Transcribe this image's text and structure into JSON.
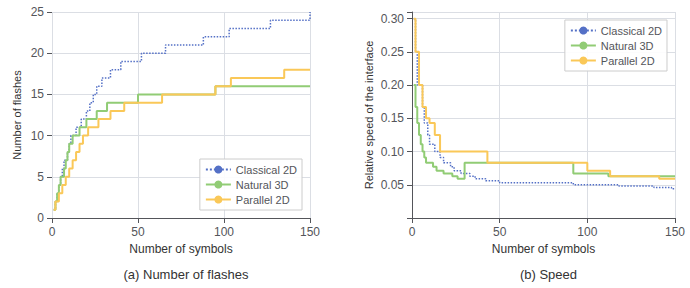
{
  "chart_data": [
    {
      "type": "step",
      "title": "(a) Number of flashes",
      "xlabel": "Number of symbols",
      "ylabel": "Number of flashes",
      "xlim": [
        0,
        150
      ],
      "ylim": [
        0,
        25
      ],
      "xticks": [
        0,
        50,
        100,
        150
      ],
      "yticks": [
        0,
        5,
        10,
        15,
        20,
        25
      ],
      "grid": true,
      "legend": "lower right",
      "series": [
        {
          "name": "Classical 2D",
          "line_style": "dotted",
          "x": [
            1,
            2,
            3,
            4,
            5,
            6,
            7,
            8,
            9,
            10,
            11,
            12,
            13,
            14,
            15,
            16,
            17,
            18,
            19,
            20,
            21,
            22,
            23,
            24,
            25,
            26,
            27,
            28,
            29,
            30,
            32,
            34,
            36,
            38,
            40,
            43,
            46,
            49,
            52,
            55,
            58,
            62,
            66,
            70,
            74,
            78,
            83,
            88,
            93,
            98,
            103,
            109,
            115,
            121,
            127,
            133,
            139,
            145,
            150
          ],
          "values": [
            1,
            2,
            3,
            4,
            5,
            6,
            7,
            7,
            8,
            9,
            10,
            10,
            10,
            11,
            11,
            11,
            12,
            12,
            12,
            13,
            13,
            14,
            14,
            15,
            15,
            16,
            16,
            16,
            17,
            17,
            17,
            18,
            18,
            18,
            19,
            19,
            19,
            19,
            20,
            20,
            20,
            20,
            21,
            21,
            21,
            21,
            21,
            22,
            22,
            22,
            23,
            23,
            23,
            23,
            24,
            24,
            24,
            24,
            25
          ]
        },
        {
          "name": "Natural 3D",
          "line_style": "solid",
          "x": [
            1,
            2,
            3,
            4,
            5,
            6,
            7,
            8,
            9,
            10,
            12,
            14,
            16,
            18,
            20,
            23,
            26,
            29,
            32,
            35,
            38,
            42,
            46,
            50,
            55,
            60,
            65,
            70,
            76,
            82,
            88,
            95,
            102,
            110,
            118,
            126,
            135,
            143,
            150
          ],
          "values": [
            1,
            2,
            3,
            4,
            5,
            5,
            6,
            7,
            8,
            9,
            10,
            10,
            11,
            11,
            12,
            12,
            13,
            13,
            14,
            14,
            14,
            14,
            14,
            15,
            15,
            15,
            15,
            15,
            15,
            15,
            15,
            16,
            16,
            16,
            16,
            16,
            16,
            16,
            16
          ]
        },
        {
          "name": "Parallel 2D",
          "line_style": "solid",
          "x": [
            1,
            2,
            4,
            6,
            8,
            10,
            12,
            14,
            16,
            18,
            21,
            24,
            27,
            30,
            34,
            38,
            42,
            47,
            52,
            58,
            64,
            71,
            78,
            86,
            95,
            104,
            114,
            124,
            135,
            145,
            150
          ],
          "values": [
            1,
            2,
            3,
            4,
            5,
            6,
            7,
            8,
            9,
            10,
            11,
            11,
            12,
            12,
            13,
            13,
            14,
            14,
            14,
            14,
            15,
            15,
            15,
            15,
            16,
            17,
            17,
            17,
            18,
            18,
            18
          ]
        }
      ]
    },
    {
      "type": "step",
      "title": "(b) Speed",
      "xlabel": "Number of symbols",
      "ylabel": "Relative speed of the interface",
      "xlim": [
        0,
        150
      ],
      "ylim": [
        0,
        0.31
      ],
      "xticks": [
        0,
        50,
        100,
        150
      ],
      "yticks": [
        0.05,
        {
          "value": 0.1,
          "label": "0.10"
        },
        0.15,
        {
          "value": 0.2,
          "label": "0.20"
        },
        0.25,
        {
          "value": 0.3,
          "label": "0.30"
        }
      ],
      "grid": true,
      "legend": "upper right",
      "series": [
        {
          "name": "Classical 2D",
          "line_style": "dotted",
          "x": [
            1,
            2,
            3,
            4,
            5,
            6,
            7,
            8,
            9,
            10,
            11,
            12,
            13,
            14,
            15,
            16,
            17,
            18,
            19,
            20,
            22,
            24,
            26,
            28,
            30,
            33,
            36,
            39,
            42,
            46,
            50,
            55,
            60,
            65,
            71,
            77,
            84,
            92,
            100,
            109,
            118,
            128,
            138,
            148,
            150
          ],
          "values": [
            0.3,
            0.25,
            0.2,
            0.2,
            0.2,
            0.167,
            0.143,
            0.143,
            0.125,
            0.111,
            0.111,
            0.111,
            0.1,
            0.1,
            0.1,
            0.091,
            0.091,
            0.083,
            0.083,
            0.083,
            0.077,
            0.071,
            0.071,
            0.067,
            0.067,
            0.063,
            0.059,
            0.059,
            0.056,
            0.056,
            0.053,
            0.053,
            0.053,
            0.053,
            0.053,
            0.053,
            0.053,
            0.05,
            0.05,
            0.05,
            0.048,
            0.048,
            0.046,
            0.044,
            0.044
          ]
        },
        {
          "name": "Natural 3D",
          "line_style": "solid",
          "x": [
            1,
            2,
            3,
            4,
            5,
            6,
            7,
            8,
            9,
            10,
            12,
            14,
            16,
            18,
            20,
            23,
            26,
            30,
            34,
            38,
            43,
            48,
            54,
            60,
            67,
            75,
            83,
            92,
            102,
            112,
            123,
            135,
            147,
            150
          ],
          "values": [
            0.2,
            0.167,
            0.143,
            0.125,
            0.111,
            0.1,
            0.091,
            0.083,
            0.083,
            0.083,
            0.077,
            0.071,
            0.071,
            0.067,
            0.067,
            0.063,
            0.059,
            0.083,
            0.083,
            0.083,
            0.083,
            0.083,
            0.083,
            0.083,
            0.083,
            0.083,
            0.083,
            0.067,
            0.067,
            0.063,
            0.063,
            0.063,
            0.063,
            0.063
          ]
        },
        {
          "name": "Parallel 2D",
          "line_style": "solid",
          "x": [
            1,
            2,
            4,
            6,
            8,
            10,
            13,
            16,
            19,
            23,
            27,
            32,
            37,
            43,
            50,
            58,
            67,
            77,
            88,
            100,
            113,
            127,
            141,
            150
          ],
          "values": [
            0.3,
            0.25,
            0.2,
            0.167,
            0.15,
            0.143,
            0.125,
            0.1,
            0.1,
            0.1,
            0.1,
            0.1,
            0.1,
            0.083,
            0.083,
            0.083,
            0.083,
            0.083,
            0.083,
            0.071,
            0.063,
            0.063,
            0.059,
            0.059
          ]
        }
      ]
    }
  ]
}
